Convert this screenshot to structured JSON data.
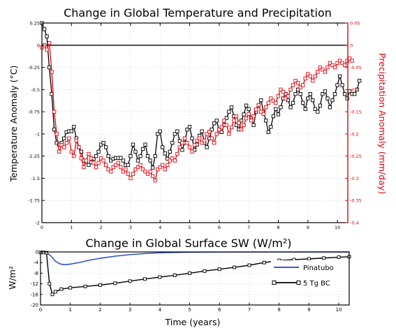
{
  "chart_data": [
    {
      "type": "line",
      "title": "Change in Global Temperature and Precipitation",
      "xlabel": "",
      "ylabel": "Temperature Anomaly (°C)",
      "ylabel_right": "Precipitation Anomaly (mm/day)",
      "xlim": [
        0,
        10.35
      ],
      "ylim": [
        -2,
        0.25
      ],
      "ylim_right": [
        -0.4,
        0.05
      ],
      "x_ticks": [
        "0",
        "1",
        "2",
        "3",
        "4",
        "5",
        "6",
        "7",
        "8",
        "9",
        "10"
      ],
      "y_ticks": [
        "0.25",
        "0",
        "-0.25",
        "-0.5",
        "-0.75",
        "-1",
        "-1.25",
        "-1.5",
        "-1.75",
        "-2"
      ],
      "y_ticks_right": [
        "0.05",
        "0",
        "-0.05",
        "-0.1",
        "-0.15",
        "-0.2",
        "-0.25",
        "-0.3",
        "-0.35",
        "-0.4"
      ],
      "grid": true,
      "zero_line": 0,
      "series": [
        {
          "axis": "left",
          "color": "#000000",
          "marker": "square",
          "x_step": 0.0833,
          "values": [
            0.3,
            0.18,
            0.1,
            -0.25,
            -0.55,
            -0.95,
            -1.1,
            -1.12,
            -1.1,
            -1.05,
            -0.98,
            -0.97,
            -0.97,
            -0.92,
            -1.05,
            -1.15,
            -1.2,
            -1.3,
            -1.32,
            -1.35,
            -1.32,
            -1.28,
            -1.25,
            -1.2,
            -1.12,
            -1.1,
            -1.15,
            -1.25,
            -1.3,
            -1.28,
            -1.27,
            -1.27,
            -1.27,
            -1.3,
            -1.35,
            -1.35,
            -1.25,
            -1.12,
            -1.2,
            -1.3,
            -1.25,
            -1.17,
            -1.12,
            -1.25,
            -1.3,
            -1.38,
            -1.25,
            -1.0,
            -0.97,
            -1.15,
            -1.22,
            -1.28,
            -1.2,
            -1.1,
            -1.0,
            -0.97,
            -1.08,
            -1.18,
            -1.1,
            -0.95,
            -0.92,
            -1.05,
            -1.18,
            -1.12,
            -1.02,
            -0.97,
            -1.1,
            -1.15,
            -1.05,
            -0.95,
            -0.88,
            -0.85,
            -0.97,
            -0.98,
            -0.9,
            -0.82,
            -0.75,
            -0.7,
            -0.8,
            -0.9,
            -0.95,
            -0.85,
            -0.78,
            -0.68,
            -0.72,
            -0.82,
            -0.9,
            -0.75,
            -0.68,
            -0.62,
            -0.75,
            -0.85,
            -0.98,
            -0.92,
            -0.8,
            -0.72,
            -0.78,
            -0.7,
            -0.6,
            -0.55,
            -0.62,
            -0.7,
            -0.65,
            -0.55,
            -0.5,
            -0.55,
            -0.65,
            -0.72,
            -0.6,
            -0.55,
            -0.62,
            -0.72,
            -0.75,
            -0.68,
            -0.55,
            -0.52,
            -0.6,
            -0.7,
            -0.62,
            -0.55,
            -0.45,
            -0.35,
            -0.45,
            -0.55,
            -0.6,
            -0.52,
            -0.55,
            -0.55,
            -0.5,
            -0.4
          ]
        },
        {
          "axis": "right",
          "color": "#e8000b",
          "marker": "square",
          "x_step": 0.0833,
          "values": [
            -0.005,
            0.0,
            -0.01,
            0.005,
            -0.06,
            -0.15,
            -0.2,
            -0.24,
            -0.225,
            -0.23,
            -0.22,
            -0.21,
            -0.24,
            -0.25,
            -0.215,
            -0.23,
            -0.255,
            -0.275,
            -0.26,
            -0.245,
            -0.255,
            -0.265,
            -0.275,
            -0.265,
            -0.255,
            -0.26,
            -0.27,
            -0.28,
            -0.285,
            -0.275,
            -0.27,
            -0.265,
            -0.275,
            -0.285,
            -0.28,
            -0.29,
            -0.3,
            -0.29,
            -0.28,
            -0.275,
            -0.27,
            -0.28,
            -0.285,
            -0.29,
            -0.285,
            -0.295,
            -0.305,
            -0.28,
            -0.275,
            -0.27,
            -0.28,
            -0.27,
            -0.26,
            -0.255,
            -0.26,
            -0.245,
            -0.23,
            -0.22,
            -0.21,
            -0.22,
            -0.23,
            -0.24,
            -0.225,
            -0.215,
            -0.21,
            -0.22,
            -0.215,
            -0.2,
            -0.195,
            -0.21,
            -0.22,
            -0.2,
            -0.19,
            -0.185,
            -0.17,
            -0.18,
            -0.2,
            -0.185,
            -0.17,
            -0.16,
            -0.175,
            -0.19,
            -0.18,
            -0.165,
            -0.155,
            -0.17,
            -0.16,
            -0.145,
            -0.135,
            -0.15,
            -0.155,
            -0.14,
            -0.13,
            -0.12,
            -0.125,
            -0.13,
            -0.115,
            -0.1,
            -0.105,
            -0.12,
            -0.115,
            -0.1,
            -0.09,
            -0.08,
            -0.085,
            -0.095,
            -0.09,
            -0.075,
            -0.065,
            -0.07,
            -0.08,
            -0.07,
            -0.06,
            -0.05,
            -0.055,
            -0.06,
            -0.05,
            -0.04,
            -0.045,
            -0.05,
            -0.04,
            -0.035,
            -0.04,
            -0.045,
            -0.035,
            -0.03,
            -0.035
          ]
        }
      ]
    },
    {
      "type": "line",
      "title": "Change in Global Surface SW (W/m²)",
      "xlabel": "Time (years)",
      "ylabel": "W/m²",
      "xlim": [
        0,
        10.35
      ],
      "ylim": [
        -20,
        0
      ],
      "x_ticks": [
        "0",
        "1",
        "2",
        "3",
        "4",
        "5",
        "6",
        "7",
        "8",
        "9",
        "10"
      ],
      "y_ticks": [
        "0",
        "-4",
        "-8",
        "-12",
        "-16",
        "-20"
      ],
      "grid": true,
      "legend": "right",
      "series": [
        {
          "name": "Pinatubo",
          "color": "#1f3fd0",
          "marker": "none",
          "x": [
            0,
            0.2,
            0.35,
            0.5,
            0.65,
            0.8,
            1.0,
            1.3,
            1.6,
            2.0,
            2.5,
            3.0,
            3.5,
            4.0,
            5.0,
            6.0,
            7.0,
            8.0,
            9.0,
            10.35
          ],
          "values": [
            0,
            -0.2,
            -1.5,
            -3.5,
            -4.5,
            -4.8,
            -4.6,
            -4.0,
            -3.2,
            -2.4,
            -1.6,
            -1.0,
            -0.6,
            -0.3,
            -0.12,
            -0.05,
            -0.02,
            -0.01,
            0,
            0
          ]
        },
        {
          "name": "5 Tg BC",
          "color": "#000000",
          "marker": "square",
          "x": [
            0,
            0.1,
            0.2,
            0.3,
            0.4,
            0.5,
            0.7,
            1,
            1.5,
            2,
            2.5,
            3,
            3.5,
            4,
            4.5,
            5,
            5.5,
            6,
            6.5,
            7,
            7.5,
            8,
            8.5,
            9,
            9.5,
            10,
            10.35
          ],
          "values": [
            -0.2,
            -0.2,
            -0.3,
            -12,
            -16,
            -15,
            -14,
            -13.5,
            -13,
            -12.5,
            -11.8,
            -11,
            -10.2,
            -9.5,
            -8.8,
            -8,
            -7.2,
            -6.5,
            -5.8,
            -5,
            -4,
            -3.2,
            -2.9,
            -2.6,
            -2.3,
            -2,
            -1.8
          ]
        }
      ]
    }
  ]
}
